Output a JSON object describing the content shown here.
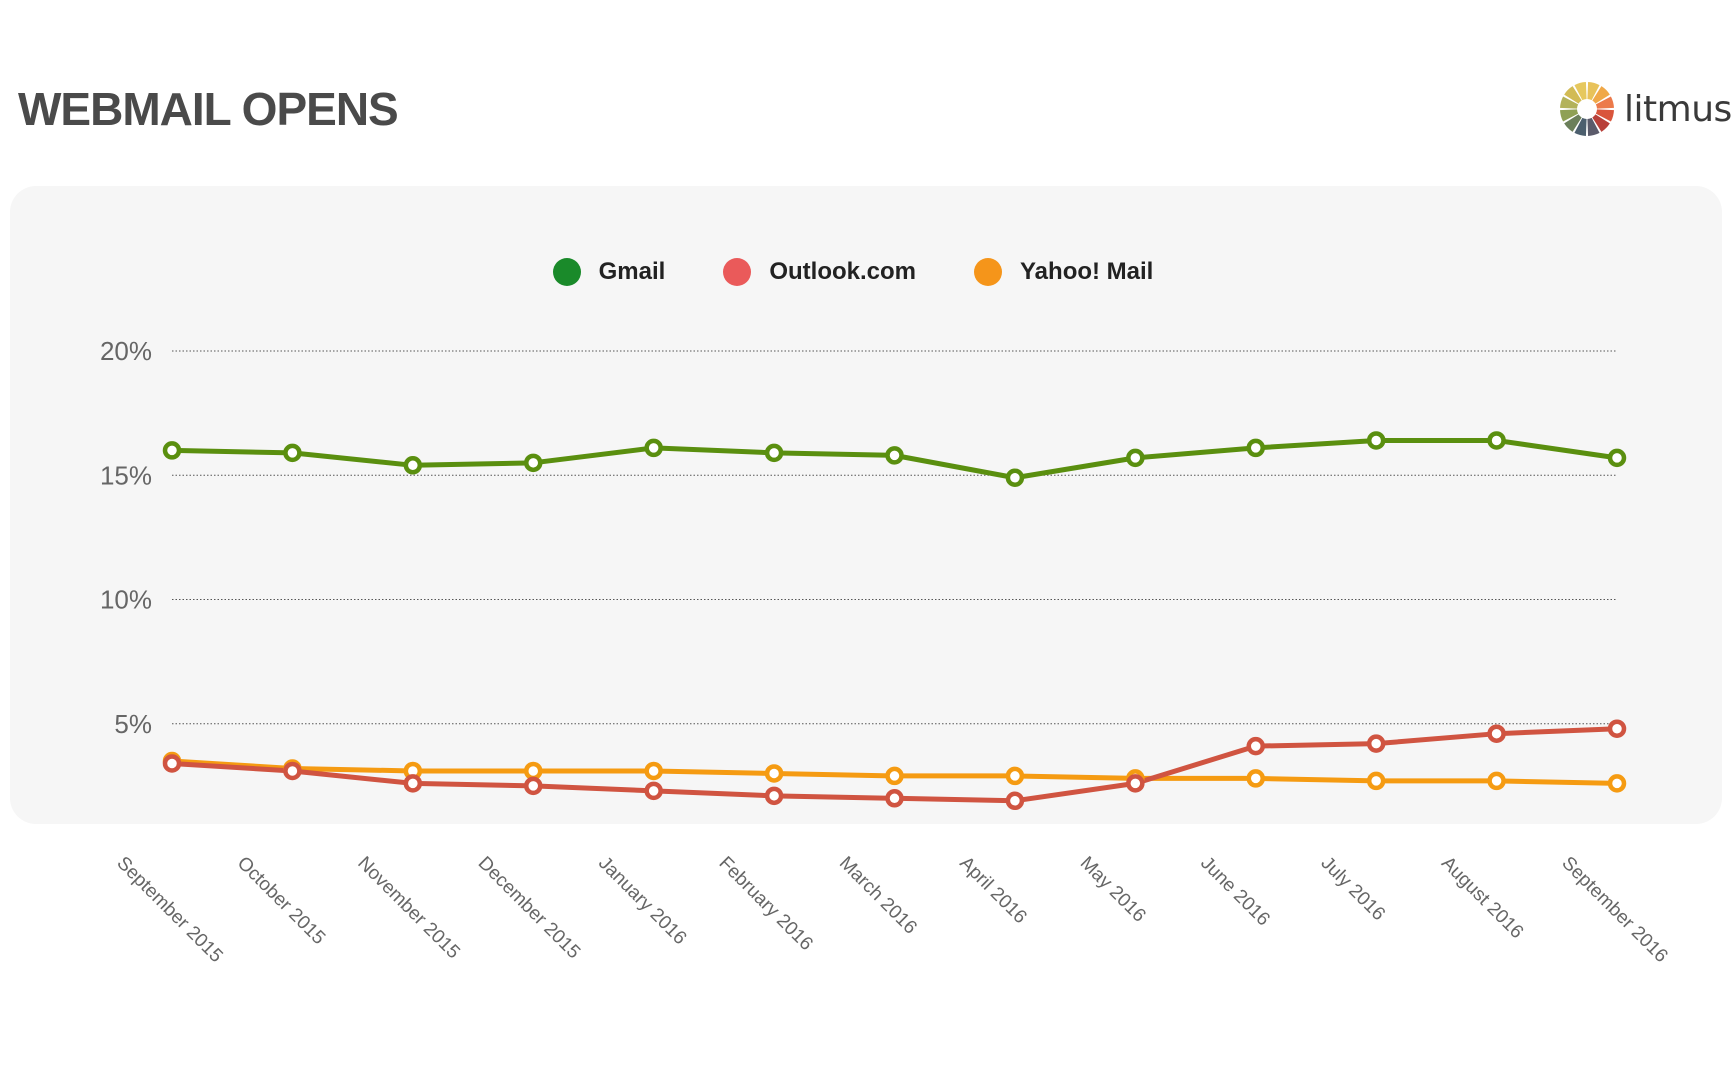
{
  "page": {
    "title": "WEBMAIL OPENS"
  },
  "logo": {
    "text": "litmus",
    "icon": "litmus-wheel-icon"
  },
  "colors": {
    "gmail_line": "#5a8f0f",
    "gmail_legend": "#1a8a2a",
    "outlook_line": "#d05441",
    "outlook_legend": "#ea5a5a",
    "yahoo_line": "#f59b12",
    "yahoo_legend": "#f5951a",
    "panel": "#f6f6f6"
  },
  "chart_data": {
    "type": "line",
    "title": "WEBMAIL OPENS",
    "xlabel": "",
    "ylabel": "",
    "ylim": [
      0,
      20
    ],
    "yticks": [
      5,
      10,
      15,
      20
    ],
    "ytick_labels": [
      "5%",
      "10%",
      "15%",
      "20%"
    ],
    "grid": "horizontal dotted",
    "legend_position": "top-center",
    "categories": [
      "September 2015",
      "October 2015",
      "November 2015",
      "December 2015",
      "January 2016",
      "February 2016",
      "March 2016",
      "April 2016",
      "May 2016",
      "June 2016",
      "July 2016",
      "August 2016",
      "September 2016"
    ],
    "series": [
      {
        "name": "Gmail",
        "values": [
          16.0,
          15.9,
          15.4,
          15.5,
          16.1,
          15.9,
          15.8,
          14.9,
          15.7,
          16.1,
          16.4,
          16.4,
          15.7
        ]
      },
      {
        "name": "Outlook.com",
        "values": [
          3.4,
          3.1,
          2.6,
          2.5,
          2.3,
          2.1,
          2.0,
          1.9,
          2.6,
          4.1,
          4.2,
          4.6,
          4.8
        ]
      },
      {
        "name": "Yahoo! Mail",
        "values": [
          3.5,
          3.2,
          3.1,
          3.1,
          3.1,
          3.0,
          2.9,
          2.9,
          2.8,
          2.8,
          2.7,
          2.7,
          2.6
        ]
      }
    ]
  }
}
